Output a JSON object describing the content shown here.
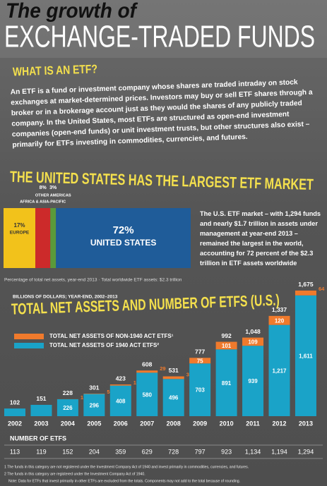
{
  "header": {
    "script_title": "The growth of",
    "title": "EXCHANGE-TRADED FUNDS"
  },
  "intro": {
    "heading": "WHAT IS AN ETF?",
    "text": "An ETF is a fund or investment company whose shares are traded intraday on stock exchanges at market-determined prices. Investors may buy or sell ETF shares through a broker or in a brokerage account just as they would the shares of any publicly traded company. In the United States, most ETFs are structured as open-end investment companies (open-end funds) or unit investment trusts, but other structures also exist – primarily for ETFs investing in commodities, currencies, and futures."
  },
  "market": {
    "heading": "THE UNITED STATES HAS THE LARGEST ETF MARKET",
    "text": "The U.S. ETF market – with 1,294 funds and nearly $1.7 trillion in assets under management at year-end 2013 – remained the largest in the world, accounting for 72 percent of the $2.3 trillion in ETF assets worldwide"
  },
  "chart_data": [
    {
      "type": "share",
      "categories": [
        "EUROPE",
        "AFRICA & ASIA-PACIFIC",
        "OTHER AMERICAS",
        "UNITED STATES"
      ],
      "values": [
        17,
        8,
        3,
        72
      ],
      "value_labels": [
        "17%",
        "8%",
        "3%",
        "72%"
      ],
      "colors": [
        "#f2c21b",
        "#cc2a2a",
        "#5a9a3a",
        "#1f5c99"
      ],
      "caption": "Percentage of total net assets, year-end 2013 · Total worldwide ETF assets: $2.3 trillion"
    },
    {
      "type": "stacked-bar",
      "subtitle": "BILLIONS OF DOLLARS; YEAR-END, 2002–2013",
      "title": "TOTAL NET ASSETS AND NUMBER OF ETFS (U.S.)",
      "categories": [
        "2002",
        "2003",
        "2004",
        "2005",
        "2006",
        "2007",
        "2008",
        "2009",
        "2010",
        "2011",
        "2012",
        "2013"
      ],
      "series": [
        {
          "name": "TOTAL NET ASSETS OF 1940 ACT ETFS²",
          "color": "#1aa3c8",
          "values": [
            102,
            151,
            226,
            296,
            408,
            580,
            496,
            703,
            891,
            939,
            1217,
            1611
          ],
          "value_labels": [
            null,
            null,
            "226",
            "296",
            "408",
            "580",
            "496",
            "703",
            "891",
            "939",
            "1,217",
            "1,611"
          ]
        },
        {
          "name": "TOTAL NET ASSETS OF NON-1940 ACT ETFS¹",
          "color": "#f07a2c",
          "values": [
            0,
            0,
            1,
            5,
            15,
            29,
            35,
            75,
            101,
            109,
            120,
            64
          ],
          "value_labels": [
            null,
            null,
            "1",
            "5",
            "15",
            "29",
            "35",
            "75",
            "101",
            "109",
            "120",
            "64"
          ]
        }
      ],
      "totals": {
        "values": [
          102,
          151,
          228,
          301,
          423,
          608,
          531,
          777,
          992,
          1048,
          1337,
          1675
        ],
        "value_labels": [
          "102",
          "151",
          "228",
          "301",
          "423",
          "608",
          "531",
          "777",
          "992",
          "1,048",
          "1,337",
          "1,675"
        ]
      }
    }
  ],
  "etf_count": {
    "title": "NUMBER OF ETFS",
    "values": [
      "113",
      "119",
      "152",
      "204",
      "359",
      "629",
      "728",
      "797",
      "923",
      "1,134",
      "1,194",
      "1,294"
    ]
  },
  "footnotes": [
    "1 The funds in this category are not registered under the Investment Company Act of 1940 and invest primarily in commodities, currencies, and futures.",
    "2 The funds in this category are registered under the Investment Company Act of 1940.",
    "Note: Data for ETFs that invest primarily in other ETFs are excluded from the totals. Components may not add to the total because of rounding."
  ]
}
